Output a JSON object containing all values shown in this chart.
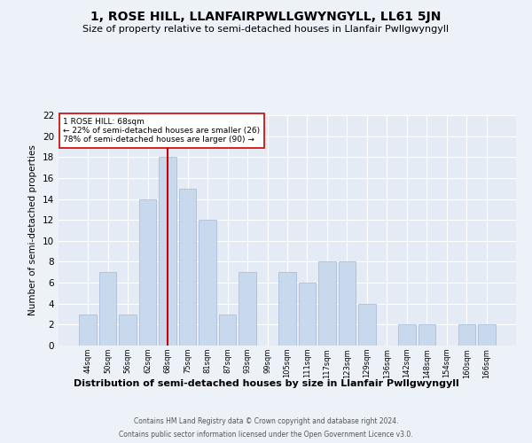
{
  "title": "1, ROSE HILL, LLANFAIRPWLLGWYNGYLL, LL61 5JN",
  "subtitle": "Size of property relative to semi-detached houses in Llanfair Pwllgwyngyll",
  "xlabel": "Distribution of semi-detached houses by size in Llanfair Pwllgwyngyll",
  "ylabel": "Number of semi-detached properties",
  "categories": [
    "44sqm",
    "50sqm",
    "56sqm",
    "62sqm",
    "68sqm",
    "75sqm",
    "81sqm",
    "87sqm",
    "93sqm",
    "99sqm",
    "105sqm",
    "111sqm",
    "117sqm",
    "123sqm",
    "129sqm",
    "136sqm",
    "142sqm",
    "148sqm",
    "154sqm",
    "160sqm",
    "166sqm"
  ],
  "values": [
    3,
    7,
    3,
    14,
    18,
    15,
    12,
    3,
    7,
    0,
    7,
    6,
    8,
    8,
    4,
    0,
    2,
    2,
    0,
    2,
    2
  ],
  "bar_color": "#c9d9ed",
  "bar_edge_color": "#a0b8d8",
  "highlight_index": 4,
  "highlight_color": "#cc0000",
  "ylim": [
    0,
    22
  ],
  "yticks": [
    0,
    2,
    4,
    6,
    8,
    10,
    12,
    14,
    16,
    18,
    20,
    22
  ],
  "annotation_title": "1 ROSE HILL: 68sqm",
  "annotation_line1": "← 22% of semi-detached houses are smaller (26)",
  "annotation_line2": "78% of semi-detached houses are larger (90) →",
  "footer_line1": "Contains HM Land Registry data © Crown copyright and database right 2024.",
  "footer_line2": "Contains public sector information licensed under the Open Government Licence v3.0.",
  "bg_color": "#edf1f8",
  "plot_bg_color": "#e4ebf5",
  "grid_color": "#ffffff",
  "title_fontsize": 10,
  "subtitle_fontsize": 8,
  "annotation_box_color": "#ffffff",
  "annotation_border_color": "#cc0000"
}
